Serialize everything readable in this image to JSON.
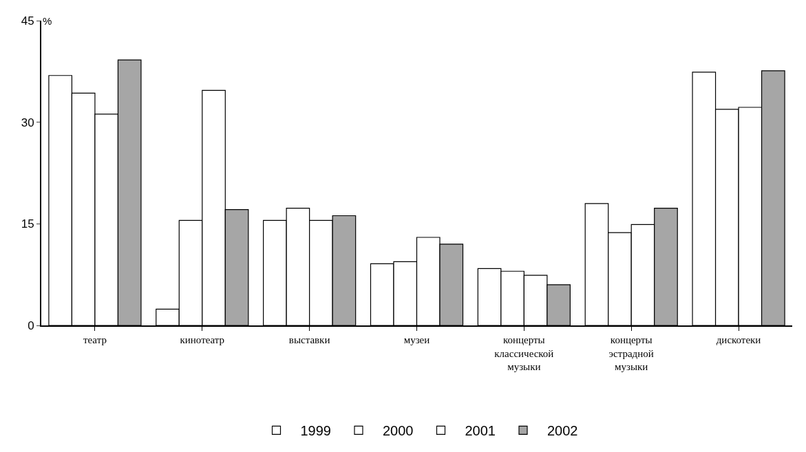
{
  "chart_data": {
    "type": "bar",
    "ylabel": "%",
    "categories": [
      "театр",
      "кинотеатр",
      "выставки",
      "музеи",
      "концерты\nклассической\nмузыки",
      "концерты\nэстрадной\nмузыки",
      "дискотеки"
    ],
    "series": [
      {
        "name": "1999",
        "color": "#ffffff",
        "values": [
          36.9,
          2.4,
          15.5,
          9.1,
          8.4,
          18.0,
          37.4
        ]
      },
      {
        "name": "2000",
        "color": "#ffffff",
        "values": [
          34.3,
          15.5,
          17.3,
          9.4,
          8.0,
          13.7,
          31.9
        ]
      },
      {
        "name": "2001",
        "color": "#ffffff",
        "values": [
          31.2,
          34.7,
          15.5,
          13.0,
          7.4,
          14.9,
          32.2
        ]
      },
      {
        "name": "2002",
        "color": "#a6a6a6",
        "values": [
          39.2,
          17.1,
          16.2,
          12.0,
          6.0,
          17.3,
          37.6
        ]
      }
    ],
    "ylim": [
      0,
      45
    ],
    "yticks": [
      0,
      15,
      30,
      45
    ],
    "legend": "bottom"
  }
}
